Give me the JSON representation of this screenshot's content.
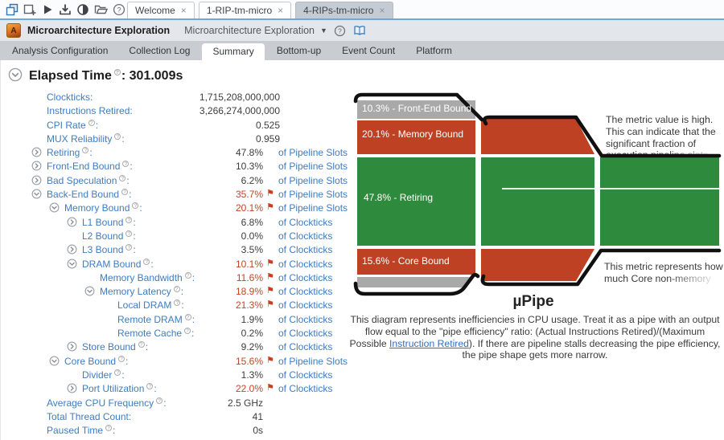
{
  "theme": {
    "accent_blue": "#6fa6db",
    "link_blue": "#3f7cc0",
    "flag_red": "#d03a1f",
    "flagged_value": "#bf4522",
    "pipe_green": "#2e8b3d",
    "pipe_red": "#bf4123",
    "pipe_gray": "#a9a9a9",
    "outline_black": "#101010"
  },
  "tabstrip": {
    "toolbar_icons": [
      "configure-analysis-icon",
      "new-analysis-icon",
      "start-analysis-icon",
      "import-result-icon",
      "compare-results-icon",
      "open-result-icon",
      "help-icon"
    ],
    "tabs": [
      {
        "label": "Welcome"
      },
      {
        "label": "1-RIP-tm-micro"
      },
      {
        "label": "4-RIPs-tm-micro"
      }
    ],
    "active_index": 2,
    "close_glyph": "×"
  },
  "appbar": {
    "badge_letter": "A",
    "title": "Microarchitecture Exploration",
    "dropdown_label": "Microarchitecture Exploration",
    "caret_glyph": "▼"
  },
  "subtabs": {
    "items": [
      "Analysis Configuration",
      "Collection Log",
      "Summary",
      "Bottom-up",
      "Event Count",
      "Platform"
    ],
    "active": "Summary"
  },
  "summary_header": {
    "title": "Elapsed Time",
    "separator": ":",
    "value": "301.009s"
  },
  "metrics": {
    "label_suffix": ":",
    "flag_glyph": "⚑",
    "rows": [
      {
        "level": 0,
        "exp": null,
        "label": "Clockticks",
        "info": false,
        "value": "1,715,208,000,000",
        "flag": false,
        "unit": null,
        "wide": true
      },
      {
        "level": 0,
        "exp": null,
        "label": "Instructions Retired",
        "info": false,
        "value": "3,266,274,000,000",
        "flag": false,
        "unit": null,
        "wide": true
      },
      {
        "level": 0,
        "exp": null,
        "label": "CPI Rate",
        "info": true,
        "value": "0.525",
        "flag": false,
        "unit": null,
        "wide": true
      },
      {
        "level": 0,
        "exp": null,
        "label": "MUX Reliability",
        "info": true,
        "value": "0.959",
        "flag": false,
        "unit": null,
        "wide": true
      },
      {
        "level": 0,
        "exp": "closed",
        "label": "Retiring",
        "info": true,
        "value": "47.8%",
        "flag": false,
        "unit": "of Pipeline Slots",
        "wide": false
      },
      {
        "level": 0,
        "exp": "closed",
        "label": "Front-End Bound",
        "info": true,
        "value": "10.3%",
        "flag": false,
        "unit": "of Pipeline Slots",
        "wide": false
      },
      {
        "level": 0,
        "exp": "closed",
        "label": "Bad Speculation",
        "info": true,
        "value": "6.2%",
        "flag": false,
        "unit": "of Pipeline Slots",
        "wide": false
      },
      {
        "level": 0,
        "exp": "open",
        "label": "Back-End Bound",
        "info": true,
        "value": "35.7%",
        "flag": true,
        "unit": "of Pipeline Slots",
        "wide": false
      },
      {
        "level": 1,
        "exp": "open",
        "label": "Memory Bound",
        "info": true,
        "value": "20.1%",
        "flag": true,
        "unit": "of Pipeline Slots",
        "wide": false
      },
      {
        "level": 2,
        "exp": "closed",
        "label": "L1 Bound",
        "info": true,
        "value": "6.8%",
        "flag": false,
        "unit": "of Clockticks",
        "wide": false
      },
      {
        "level": 2,
        "exp": null,
        "label": "L2 Bound",
        "info": true,
        "value": "0.0%",
        "flag": false,
        "unit": "of Clockticks",
        "wide": false
      },
      {
        "level": 2,
        "exp": "closed",
        "label": "L3 Bound",
        "info": true,
        "value": "3.5%",
        "flag": false,
        "unit": "of Clockticks",
        "wide": false
      },
      {
        "level": 2,
        "exp": "open",
        "label": "DRAM Bound",
        "info": true,
        "value": "10.1%",
        "flag": true,
        "unit": "of Clockticks",
        "wide": false
      },
      {
        "level": 3,
        "exp": null,
        "label": "Memory Bandwidth",
        "info": true,
        "value": "11.6%",
        "flag": true,
        "unit": "of Clockticks",
        "wide": false
      },
      {
        "level": 3,
        "exp": "open",
        "label": "Memory Latency",
        "info": true,
        "value": "18.9%",
        "flag": true,
        "unit": "of Clockticks",
        "wide": false
      },
      {
        "level": 4,
        "exp": null,
        "label": "Local DRAM",
        "info": true,
        "value": "21.3%",
        "flag": true,
        "unit": "of Clockticks",
        "wide": false
      },
      {
        "level": 4,
        "exp": null,
        "label": "Remote DRAM",
        "info": true,
        "value": "1.9%",
        "flag": false,
        "unit": "of Clockticks",
        "wide": false
      },
      {
        "level": 4,
        "exp": null,
        "label": "Remote Cache",
        "info": true,
        "value": "0.2%",
        "flag": false,
        "unit": "of Clockticks",
        "wide": false
      },
      {
        "level": 2,
        "exp": "closed",
        "label": "Store Bound",
        "info": true,
        "value": "9.2%",
        "flag": false,
        "unit": "of Clockticks",
        "wide": false
      },
      {
        "level": 1,
        "exp": "open",
        "label": "Core Bound",
        "info": true,
        "value": "15.6%",
        "flag": true,
        "unit": "of Pipeline Slots",
        "wide": false
      },
      {
        "level": 2,
        "exp": null,
        "label": "Divider",
        "info": true,
        "value": "1.3%",
        "flag": false,
        "unit": "of Clockticks",
        "wide": false
      },
      {
        "level": 2,
        "exp": "closed",
        "label": "Port Utilization",
        "info": true,
        "value": "22.0%",
        "flag": true,
        "unit": "of Clockticks",
        "wide": false
      },
      {
        "level": 0,
        "exp": null,
        "label": "Average CPU Frequency",
        "info": true,
        "value": "2.5 GHz",
        "flag": false,
        "unit": null,
        "wide": false
      },
      {
        "level": 0,
        "exp": null,
        "label": "Total Thread Count",
        "info": false,
        "value": "41",
        "flag": false,
        "unit": null,
        "wide": false
      },
      {
        "level": 0,
        "exp": null,
        "label": "Paused Time",
        "info": true,
        "value": "0s",
        "flag": false,
        "unit": null,
        "wide": false
      }
    ]
  },
  "upipe": {
    "bands": [
      {
        "label": "10.3% - Front-End Bound"
      },
      {
        "label": "20.1% - Memory Bound"
      },
      {
        "label": "47.8% - Retiring"
      },
      {
        "label": "15.6% - Core Bound"
      }
    ],
    "tooltips": [
      {
        "lines": [
          "The metric value is high.",
          "This can indicate that the",
          "significant fraction of",
          "execution pipeline slots"
        ]
      },
      {
        "lines": [
          "This metric represents how",
          "much Core non-memory"
        ]
      }
    ],
    "title": "µPipe",
    "description": {
      "before": "This diagram represents inefficiencies in CPU usage. Treat it as a pipe with an output flow equal to the \"pipe efficiency\" ratio: (Actual Instructions Retired)/(Maximum Possible ",
      "link": "Instruction Retired",
      "after": "). If there are pipeline stalls decreasing the pipe efficiency, the pipe shape gets more narrow."
    }
  }
}
